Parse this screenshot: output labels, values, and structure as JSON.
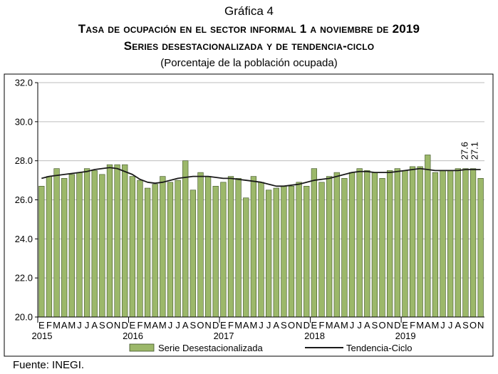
{
  "header": {
    "number": "Gráfica 4",
    "title": "Tasa de ocupación en el sector informal 1 a noviembre de 2019",
    "subtitle": "Series desestacionalizada y de tendencia-ciclo",
    "unit": "(Porcentaje de la población ocupada)"
  },
  "source": "Fuente: INEGI.",
  "colors": {
    "bar_fill": "#9cb86a",
    "bar_stroke": "#3d5226",
    "trend_line": "#1a1a1a"
  },
  "chart_data": {
    "type": "bar",
    "ylim": [
      20,
      32
    ],
    "yticks": [
      "20.0",
      "22.0",
      "24.0",
      "26.0",
      "28.0",
      "30.0",
      "32.0"
    ],
    "grid": true,
    "legend_position": "bottom",
    "month_labels": [
      "E",
      "F",
      "M",
      "A",
      "M",
      "J",
      "J",
      "A",
      "S",
      "O",
      "N",
      "D"
    ],
    "years": [
      "2015",
      "2016",
      "2017",
      "2018",
      "2019"
    ],
    "categories": [
      "E 2015",
      "F 2015",
      "M 2015",
      "A 2015",
      "M 2015",
      "J 2015",
      "J 2015",
      "A 2015",
      "S 2015",
      "O 2015",
      "N 2015",
      "D 2015",
      "E 2016",
      "F 2016",
      "M 2016",
      "A 2016",
      "M 2016",
      "J 2016",
      "J 2016",
      "A 2016",
      "S 2016",
      "O 2016",
      "N 2016",
      "D 2016",
      "E 2017",
      "F 2017",
      "M 2017",
      "A 2017",
      "M 2017",
      "J 2017",
      "J 2017",
      "A 2017",
      "S 2017",
      "O 2017",
      "N 2017",
      "D 2017",
      "E 2018",
      "F 2018",
      "M 2018",
      "A 2018",
      "M 2018",
      "J 2018",
      "J 2018",
      "A 2018",
      "S 2018",
      "O 2018",
      "N 2018",
      "D 2018",
      "E 2019",
      "F 2019",
      "M 2019",
      "A 2019",
      "M 2019",
      "J 2019",
      "J 2019",
      "A 2019",
      "S 2019",
      "O 2019",
      "N 2019"
    ],
    "series": [
      {
        "name": "Serie Desestacionalizada",
        "type": "bar",
        "values": [
          26.7,
          27.2,
          27.6,
          27.1,
          27.3,
          27.4,
          27.6,
          27.5,
          27.3,
          27.8,
          27.8,
          27.8,
          27.2,
          27.0,
          26.6,
          26.8,
          27.2,
          26.9,
          27.0,
          28.0,
          26.5,
          27.4,
          27.2,
          26.7,
          26.9,
          27.2,
          27.1,
          26.1,
          27.2,
          26.9,
          26.5,
          26.6,
          26.7,
          26.7,
          26.9,
          26.7,
          27.6,
          26.9,
          27.2,
          27.4,
          27.1,
          27.4,
          27.6,
          27.5,
          27.4,
          27.1,
          27.5,
          27.6,
          27.5,
          27.7,
          27.7,
          28.3,
          27.4,
          27.5,
          27.5,
          27.6,
          27.6,
          27.6,
          27.1
        ]
      },
      {
        "name": "Tendencia-Ciclo",
        "type": "line",
        "values": [
          27.1,
          27.2,
          27.25,
          27.3,
          27.35,
          27.4,
          27.45,
          27.55,
          27.6,
          27.65,
          27.6,
          27.45,
          27.3,
          27.05,
          26.9,
          26.85,
          26.9,
          27.0,
          27.1,
          27.15,
          27.2,
          27.2,
          27.2,
          27.15,
          27.1,
          27.1,
          27.05,
          27.0,
          26.95,
          26.9,
          26.8,
          26.7,
          26.7,
          26.75,
          26.8,
          26.9,
          27.0,
          27.05,
          27.1,
          27.2,
          27.3,
          27.4,
          27.45,
          27.45,
          27.4,
          27.4,
          27.4,
          27.45,
          27.5,
          27.55,
          27.6,
          27.55,
          27.5,
          27.5,
          27.5,
          27.5,
          27.55,
          27.55,
          27.55
        ]
      }
    ],
    "data_labels": [
      "27.6",
      "27.1"
    ]
  }
}
